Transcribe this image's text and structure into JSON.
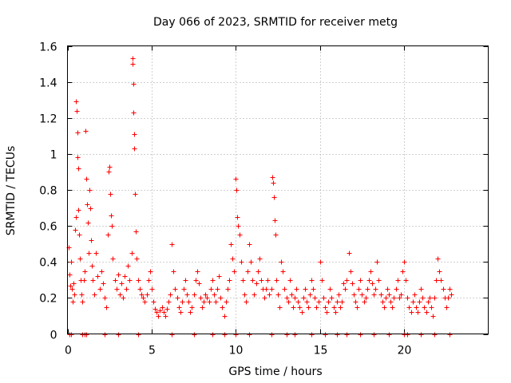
{
  "chart_data": {
    "type": "scatter",
    "title": "Day 066 of 2023, SRMTID for receiver metg",
    "xlabel": "GPS time / hours",
    "ylabel": "SRMTID / TECUs",
    "xlim": [
      0,
      25
    ],
    "ylim": [
      0,
      1.6
    ],
    "xticks": [
      0,
      5,
      10,
      15,
      20
    ],
    "xtick_labels": [
      "0",
      "5",
      "10",
      "15",
      "20"
    ],
    "yticks": [
      0,
      0.2,
      0.4,
      0.6,
      0.8,
      1.0,
      1.2,
      1.4,
      1.6
    ],
    "ytick_labels": [
      "0",
      "0.2",
      "0.4",
      "0.6",
      "0.8",
      "1",
      "1.2",
      "1.4",
      "1.6"
    ],
    "grid": true,
    "marker": "+",
    "color": "#ff0000",
    "series": [
      {
        "name": "metg",
        "points": [
          [
            0.05,
            0.48
          ],
          [
            0.1,
            0.33
          ],
          [
            0.15,
            0.27
          ],
          [
            0.2,
            0.4
          ],
          [
            0.25,
            0.25
          ],
          [
            0.3,
            0.18
          ],
          [
            0.35,
            0.28
          ],
          [
            0.4,
            0.22
          ],
          [
            0.45,
            0.58
          ],
          [
            0.5,
            0.65
          ],
          [
            0.52,
            1.29
          ],
          [
            0.55,
            1.24
          ],
          [
            0.58,
            1.12
          ],
          [
            0.6,
            0.98
          ],
          [
            0.62,
            0.92
          ],
          [
            0.65,
            0.69
          ],
          [
            0.7,
            0.55
          ],
          [
            0.75,
            0.42
          ],
          [
            0.8,
            0.3
          ],
          [
            0.85,
            0.22
          ],
          [
            0.9,
            0.18
          ],
          [
            0.95,
            0.3
          ],
          [
            1.0,
            0.35
          ],
          [
            1.05,
            1.13
          ],
          [
            1.1,
            0.86
          ],
          [
            1.15,
            0.72
          ],
          [
            1.2,
            0.62
          ],
          [
            1.25,
            0.45
          ],
          [
            1.3,
            0.8
          ],
          [
            1.35,
            0.7
          ],
          [
            1.4,
            0.52
          ],
          [
            1.45,
            0.38
          ],
          [
            1.5,
            0.3
          ],
          [
            1.6,
            0.22
          ],
          [
            1.7,
            0.45
          ],
          [
            1.8,
            0.32
          ],
          [
            1.9,
            0.25
          ],
          [
            2.0,
            0.35
          ],
          [
            2.1,
            0.28
          ],
          [
            2.2,
            0.2
          ],
          [
            2.3,
            0.15
          ],
          [
            2.4,
            0.55
          ],
          [
            2.45,
            0.9
          ],
          [
            2.5,
            0.93
          ],
          [
            2.55,
            0.78
          ],
          [
            2.6,
            0.66
          ],
          [
            2.65,
            0.6
          ],
          [
            2.7,
            0.42
          ],
          [
            2.8,
            0.3
          ],
          [
            2.9,
            0.25
          ],
          [
            3.0,
            0.33
          ],
          [
            3.1,
            0.22
          ],
          [
            3.2,
            0.28
          ],
          [
            3.3,
            0.2
          ],
          [
            3.4,
            0.32
          ],
          [
            3.5,
            0.25
          ],
          [
            3.6,
            0.38
          ],
          [
            3.7,
            0.3
          ],
          [
            3.8,
            0.45
          ],
          [
            3.85,
            1.53
          ],
          [
            3.88,
            1.5
          ],
          [
            3.9,
            1.39
          ],
          [
            3.92,
            1.23
          ],
          [
            3.95,
            1.11
          ],
          [
            3.98,
            1.03
          ],
          [
            4.0,
            0.78
          ],
          [
            4.05,
            0.57
          ],
          [
            4.1,
            0.42
          ],
          [
            4.2,
            0.3
          ],
          [
            4.3,
            0.25
          ],
          [
            4.4,
            0.22
          ],
          [
            4.5,
            0.2
          ],
          [
            4.6,
            0.18
          ],
          [
            4.7,
            0.22
          ],
          [
            4.8,
            0.3
          ],
          [
            4.9,
            0.35
          ],
          [
            5.0,
            0.25
          ],
          [
            5.1,
            0.18
          ],
          [
            5.2,
            0.14
          ],
          [
            5.3,
            0.12
          ],
          [
            5.4,
            0.1
          ],
          [
            5.5,
            0.13
          ],
          [
            5.6,
            0.15
          ],
          [
            5.7,
            0.12
          ],
          [
            5.8,
            0.1
          ],
          [
            5.9,
            0.14
          ],
          [
            6.0,
            0.18
          ],
          [
            6.1,
            0.22
          ],
          [
            6.2,
            0.5
          ],
          [
            6.3,
            0.35
          ],
          [
            6.4,
            0.25
          ],
          [
            6.5,
            0.2
          ],
          [
            6.6,
            0.15
          ],
          [
            6.7,
            0.12
          ],
          [
            6.8,
            0.18
          ],
          [
            6.9,
            0.25
          ],
          [
            7.0,
            0.3
          ],
          [
            7.1,
            0.22
          ],
          [
            7.2,
            0.18
          ],
          [
            7.3,
            0.12
          ],
          [
            7.4,
            0.15
          ],
          [
            7.5,
            0.22
          ],
          [
            7.6,
            0.3
          ],
          [
            7.7,
            0.35
          ],
          [
            7.8,
            0.28
          ],
          [
            7.9,
            0.2
          ],
          [
            8.0,
            0.15
          ],
          [
            8.1,
            0.18
          ],
          [
            8.2,
            0.22
          ],
          [
            8.3,
            0.2
          ],
          [
            8.4,
            0.18
          ],
          [
            8.5,
            0.25
          ],
          [
            8.6,
            0.3
          ],
          [
            8.7,
            0.22
          ],
          [
            8.8,
            0.18
          ],
          [
            8.9,
            0.25
          ],
          [
            9.0,
            0.32
          ],
          [
            9.1,
            0.2
          ],
          [
            9.2,
            0.15
          ],
          [
            9.3,
            0.1
          ],
          [
            9.4,
            0.18
          ],
          [
            9.5,
            0.25
          ],
          [
            9.6,
            0.3
          ],
          [
            9.7,
            0.5
          ],
          [
            9.8,
            0.42
          ],
          [
            9.9,
            0.35
          ],
          [
            10.0,
            0.86
          ],
          [
            10.05,
            0.8
          ],
          [
            10.1,
            0.65
          ],
          [
            10.15,
            0.6
          ],
          [
            10.2,
            0.55
          ],
          [
            10.3,
            0.4
          ],
          [
            10.4,
            0.3
          ],
          [
            10.5,
            0.22
          ],
          [
            10.6,
            0.18
          ],
          [
            10.7,
            0.35
          ],
          [
            10.8,
            0.5
          ],
          [
            10.9,
            0.4
          ],
          [
            11.0,
            0.3
          ],
          [
            11.1,
            0.22
          ],
          [
            11.2,
            0.28
          ],
          [
            11.3,
            0.35
          ],
          [
            11.4,
            0.42
          ],
          [
            11.5,
            0.3
          ],
          [
            11.6,
            0.25
          ],
          [
            11.7,
            0.2
          ],
          [
            11.8,
            0.25
          ],
          [
            11.9,
            0.3
          ],
          [
            12.0,
            0.22
          ],
          [
            12.1,
            0.25
          ],
          [
            12.15,
            0.87
          ],
          [
            12.2,
            0.84
          ],
          [
            12.25,
            0.76
          ],
          [
            12.3,
            0.63
          ],
          [
            12.35,
            0.55
          ],
          [
            12.4,
            0.3
          ],
          [
            12.5,
            0.22
          ],
          [
            12.6,
            0.15
          ],
          [
            12.7,
            0.4
          ],
          [
            12.8,
            0.35
          ],
          [
            12.9,
            0.25
          ],
          [
            13.0,
            0.2
          ],
          [
            13.1,
            0.18
          ],
          [
            13.2,
            0.3
          ],
          [
            13.3,
            0.22
          ],
          [
            13.4,
            0.15
          ],
          [
            13.5,
            0.2
          ],
          [
            13.6,
            0.25
          ],
          [
            13.7,
            0.18
          ],
          [
            13.8,
            0.15
          ],
          [
            13.9,
            0.12
          ],
          [
            14.0,
            0.2
          ],
          [
            14.1,
            0.25
          ],
          [
            14.2,
            0.18
          ],
          [
            14.3,
            0.15
          ],
          [
            14.4,
            0.22
          ],
          [
            14.5,
            0.3
          ],
          [
            14.6,
            0.25
          ],
          [
            14.7,
            0.2
          ],
          [
            14.8,
            0.15
          ],
          [
            14.9,
            0.18
          ],
          [
            15.0,
            0.4
          ],
          [
            15.1,
            0.3
          ],
          [
            15.2,
            0.2
          ],
          [
            15.3,
            0.15
          ],
          [
            15.4,
            0.12
          ],
          [
            15.5,
            0.18
          ],
          [
            15.6,
            0.25
          ],
          [
            15.7,
            0.2
          ],
          [
            15.8,
            0.15
          ],
          [
            15.9,
            0.12
          ],
          [
            16.0,
            0.18
          ],
          [
            16.1,
            0.22
          ],
          [
            16.2,
            0.15
          ],
          [
            16.3,
            0.18
          ],
          [
            16.4,
            0.28
          ],
          [
            16.5,
            0.25
          ],
          [
            16.6,
            0.3
          ],
          [
            16.7,
            0.45
          ],
          [
            16.8,
            0.35
          ],
          [
            16.9,
            0.28
          ],
          [
            17.0,
            0.22
          ],
          [
            17.1,
            0.18
          ],
          [
            17.2,
            0.15
          ],
          [
            17.3,
            0.25
          ],
          [
            17.4,
            0.3
          ],
          [
            17.5,
            0.22
          ],
          [
            17.6,
            0.18
          ],
          [
            17.7,
            0.2
          ],
          [
            17.8,
            0.25
          ],
          [
            17.9,
            0.3
          ],
          [
            18.0,
            0.35
          ],
          [
            18.1,
            0.28
          ],
          [
            18.2,
            0.22
          ],
          [
            18.3,
            0.25
          ],
          [
            18.4,
            0.4
          ],
          [
            18.5,
            0.3
          ],
          [
            18.6,
            0.22
          ],
          [
            18.7,
            0.18
          ],
          [
            18.8,
            0.15
          ],
          [
            18.9,
            0.2
          ],
          [
            19.0,
            0.25
          ],
          [
            19.1,
            0.22
          ],
          [
            19.2,
            0.18
          ],
          [
            19.3,
            0.15
          ],
          [
            19.4,
            0.2
          ],
          [
            19.5,
            0.25
          ],
          [
            19.6,
            0.3
          ],
          [
            19.7,
            0.2
          ],
          [
            19.8,
            0.22
          ],
          [
            19.9,
            0.35
          ],
          [
            20.0,
            0.4
          ],
          [
            20.1,
            0.3
          ],
          [
            20.2,
            0.2
          ],
          [
            20.3,
            0.15
          ],
          [
            20.4,
            0.12
          ],
          [
            20.5,
            0.18
          ],
          [
            20.6,
            0.22
          ],
          [
            20.7,
            0.15
          ],
          [
            20.8,
            0.12
          ],
          [
            20.9,
            0.18
          ],
          [
            21.0,
            0.25
          ],
          [
            21.1,
            0.2
          ],
          [
            21.2,
            0.15
          ],
          [
            21.3,
            0.12
          ],
          [
            21.4,
            0.18
          ],
          [
            21.5,
            0.2
          ],
          [
            21.6,
            0.15
          ],
          [
            21.7,
            0.1
          ],
          [
            21.8,
            0.2
          ],
          [
            21.9,
            0.3
          ],
          [
            22.0,
            0.42
          ],
          [
            22.1,
            0.35
          ],
          [
            22.2,
            0.3
          ],
          [
            22.3,
            0.25
          ],
          [
            22.4,
            0.2
          ],
          [
            22.5,
            0.15
          ],
          [
            22.6,
            0.2
          ],
          [
            22.7,
            0.25
          ],
          [
            22.8,
            0.22
          ],
          [
            0.1,
            0.0
          ],
          [
            0.2,
            0.0
          ],
          [
            0.9,
            0.0
          ],
          [
            1.0,
            0.0
          ],
          [
            1.1,
            0.0
          ],
          [
            2.2,
            0.0
          ],
          [
            3.0,
            0.0
          ],
          [
            4.2,
            0.0
          ],
          [
            6.2,
            0.0
          ],
          [
            7.5,
            0.0
          ],
          [
            8.6,
            0.0
          ],
          [
            9.3,
            0.0
          ],
          [
            10.0,
            0.0
          ],
          [
            10.8,
            0.0
          ],
          [
            12.1,
            0.0
          ],
          [
            13.0,
            0.0
          ],
          [
            13.5,
            0.0
          ],
          [
            14.5,
            0.0
          ],
          [
            15.3,
            0.0
          ],
          [
            16.0,
            0.0
          ],
          [
            16.6,
            0.0
          ],
          [
            17.4,
            0.0
          ],
          [
            18.2,
            0.0
          ],
          [
            19.1,
            0.0
          ],
          [
            20.0,
            0.0
          ],
          [
            20.2,
            0.0
          ],
          [
            21.0,
            0.0
          ],
          [
            21.8,
            0.0
          ],
          [
            22.7,
            0.0
          ]
        ]
      }
    ]
  }
}
